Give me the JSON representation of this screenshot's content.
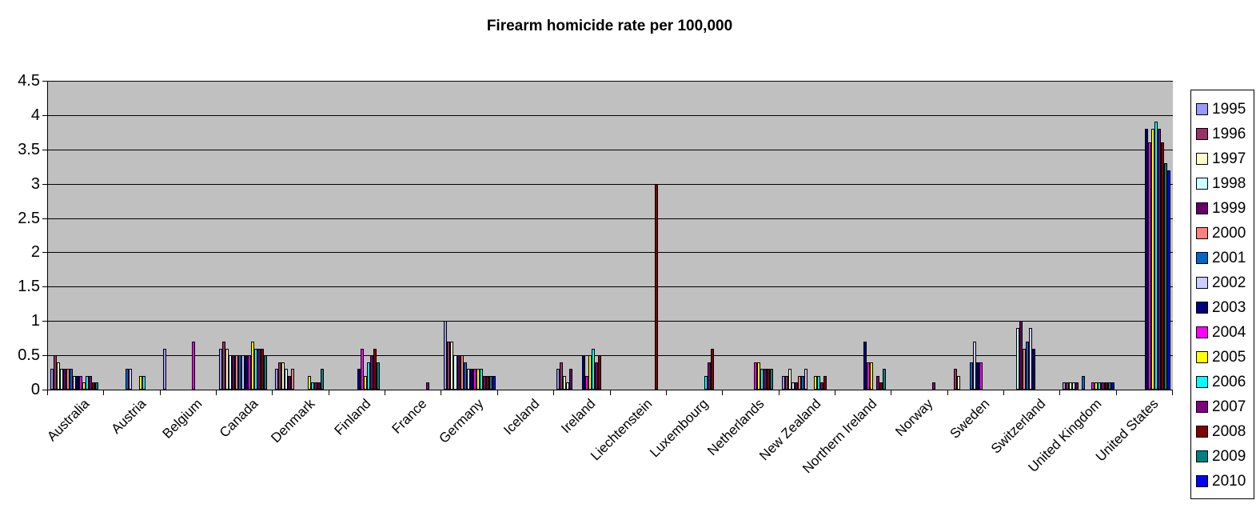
{
  "title": "Firearm homicide rate per 100,000",
  "chart_data": {
    "type": "bar",
    "title": "Firearm homicide rate per 100,000",
    "xlabel": "",
    "ylabel": "",
    "ylim": [
      0,
      4.5
    ],
    "ytick_step": 0.5,
    "ytick_labels": [
      "0",
      "0.5",
      "1",
      "1.5",
      "2",
      "2.5",
      "3",
      "3.5",
      "4",
      "4.5"
    ],
    "grid": true,
    "plot_background": "#c0c0c0",
    "legend_position": "right",
    "categories": [
      "Australia",
      "Austria",
      "Belgium",
      "Canada",
      "Denmark",
      "Finland",
      "France",
      "Germany",
      "Iceland",
      "Ireland",
      "Liechtenstein",
      "Luxembourg",
      "Netherlands",
      "New Zealand",
      "Northern Ireland",
      "Norway",
      "Sweden",
      "Switzerland",
      "United Kingdom",
      "United States"
    ],
    "series": [
      {
        "name": "1995",
        "color": "#9999FF",
        "values": [
          0.3,
          0,
          0.6,
          0.6,
          0.3,
          0,
          0,
          1.0,
          0,
          0.3,
          0,
          0,
          0,
          0.2,
          0,
          0,
          0,
          0,
          0.1,
          0
        ]
      },
      {
        "name": "1996",
        "color": "#993366",
        "values": [
          0.5,
          0,
          0,
          0.7,
          0.4,
          0,
          0,
          0.7,
          0,
          0.4,
          0,
          0,
          0,
          0.2,
          0,
          0,
          0.3,
          0,
          0.1,
          0
        ]
      },
      {
        "name": "1997",
        "color": "#FFFFCC",
        "values": [
          0.4,
          0,
          0,
          0.6,
          0.4,
          0,
          0,
          0.7,
          0,
          0.2,
          0,
          0,
          0,
          0.3,
          0,
          0,
          0.2,
          0,
          0.1,
          0
        ]
      },
      {
        "name": "1998",
        "color": "#CCFFFF",
        "values": [
          0.3,
          0,
          0,
          0.5,
          0.3,
          0,
          0,
          0.5,
          0,
          0.1,
          0,
          0,
          0,
          0.1,
          0,
          0,
          0,
          0.9,
          0.1,
          0
        ]
      },
      {
        "name": "1999",
        "color": "#660066",
        "values": [
          0.3,
          0,
          0,
          0.5,
          0.2,
          0,
          0,
          0.5,
          0,
          0.3,
          0,
          0,
          0,
          0.1,
          0,
          0,
          0,
          1.0,
          0.1,
          0
        ]
      },
      {
        "name": "2000",
        "color": "#FF8080",
        "values": [
          0.3,
          0,
          0,
          0.5,
          0.3,
          0,
          0,
          0.5,
          0,
          0,
          0,
          0,
          0,
          0.2,
          0,
          0,
          0,
          0.6,
          0,
          0
        ]
      },
      {
        "name": "2001",
        "color": "#0066CC",
        "values": [
          0.3,
          0.3,
          0,
          0.5,
          0,
          0,
          0,
          0.4,
          0,
          0,
          0,
          0,
          0,
          0.2,
          0,
          0,
          0.4,
          0.7,
          0.2,
          0
        ]
      },
      {
        "name": "2002",
        "color": "#CCCCFF",
        "values": [
          0.2,
          0.3,
          0,
          0.5,
          0,
          0,
          0,
          0.3,
          0,
          0,
          0,
          0,
          0,
          0.3,
          0,
          0,
          0.7,
          0.9,
          0,
          0
        ]
      },
      {
        "name": "2003",
        "color": "#000080",
        "values": [
          0.2,
          0,
          0,
          0.5,
          0,
          0.3,
          0,
          0.3,
          0,
          0.5,
          0,
          0,
          0,
          0,
          0.7,
          0,
          0.4,
          0.6,
          0,
          3.8
        ]
      },
      {
        "name": "2004",
        "color": "#FF00FF",
        "values": [
          0.2,
          0,
          0.7,
          0.5,
          0,
          0.6,
          0,
          0.3,
          0,
          0.2,
          0,
          0,
          0.4,
          0,
          0.4,
          0,
          0.4,
          0,
          0.1,
          3.6
        ]
      },
      {
        "name": "2005",
        "color": "#FFFF00",
        "values": [
          0.1,
          0.2,
          0,
          0.7,
          0.2,
          0.2,
          0,
          0.3,
          0,
          0.5,
          0,
          0,
          0.4,
          0.2,
          0.4,
          0,
          0,
          0,
          0.1,
          3.8
        ]
      },
      {
        "name": "2006",
        "color": "#00FFFF",
        "values": [
          0.2,
          0.2,
          0,
          0.6,
          0.1,
          0.4,
          0,
          0.3,
          0,
          0.6,
          0,
          0.2,
          0.3,
          0.2,
          0,
          0,
          0,
          0,
          0.1,
          3.9
        ]
      },
      {
        "name": "2007",
        "color": "#800080",
        "values": [
          0.2,
          0,
          0,
          0.6,
          0.1,
          0.5,
          0.1,
          0.2,
          0,
          0.4,
          0,
          0.4,
          0.3,
          0.1,
          0.2,
          0.1,
          0,
          0,
          0.1,
          3.8
        ]
      },
      {
        "name": "2008",
        "color": "#800000",
        "values": [
          0.1,
          0,
          0,
          0.6,
          0.1,
          0.6,
          0,
          0.2,
          0,
          0.5,
          3.0,
          0.6,
          0.3,
          0.2,
          0.1,
          0,
          0,
          0,
          0.1,
          3.6
        ]
      },
      {
        "name": "2009",
        "color": "#008080",
        "values": [
          0.1,
          0,
          0,
          0.5,
          0.3,
          0.4,
          0,
          0.2,
          0,
          0,
          0,
          0,
          0.3,
          0,
          0.3,
          0,
          0,
          0,
          0.1,
          3.3
        ]
      },
      {
        "name": "2010",
        "color": "#0000FF",
        "values": [
          0,
          0,
          0,
          0,
          0,
          0,
          0,
          0.2,
          0,
          0,
          0,
          0,
          0,
          0,
          0,
          0,
          0,
          0,
          0.1,
          3.2
        ]
      }
    ]
  }
}
